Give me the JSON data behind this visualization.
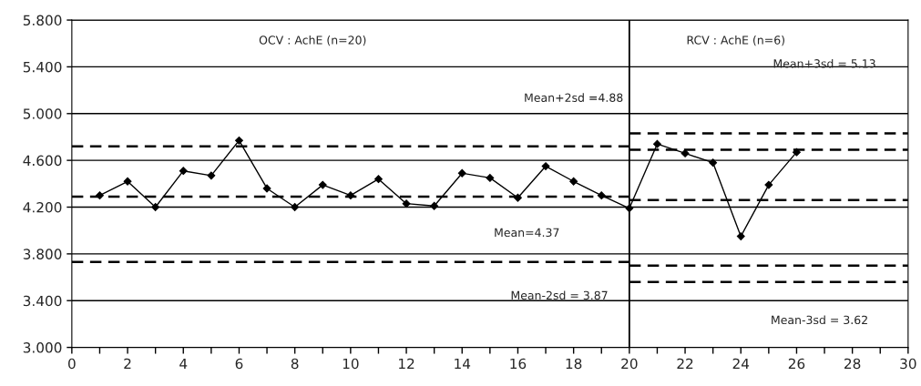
{
  "chart_data": {
    "type": "line",
    "x": [
      1,
      2,
      3,
      4,
      5,
      6,
      7,
      8,
      9,
      10,
      11,
      12,
      13,
      14,
      15,
      16,
      17,
      18,
      19,
      20,
      21,
      22,
      23,
      24,
      25,
      26
    ],
    "series": [
      {
        "color": "#000000",
        "marker": "diamond",
        "line_style": "solid",
        "values": [
          4.3,
          4.42,
          4.2,
          4.51,
          4.47,
          4.77,
          4.36,
          4.2,
          4.39,
          4.3,
          4.44,
          4.23,
          4.21,
          4.49,
          4.45,
          4.28,
          4.55,
          4.42,
          4.3,
          4.19,
          4.74,
          4.66,
          4.58,
          3.95,
          4.39,
          4.67
        ]
      },
      {
        "color": "#000000",
        "marker": "none",
        "line_style": "dashed",
        "x": [
          0,
          20
        ],
        "values": [
          4.72,
          4.72
        ]
      },
      {
        "color": "#000000",
        "marker": "none",
        "line_style": "dashed",
        "x": [
          0,
          20
        ],
        "values": [
          4.29,
          4.29
        ]
      },
      {
        "color": "#000000",
        "marker": "none",
        "line_style": "dashed",
        "x": [
          0,
          20
        ],
        "values": [
          3.73,
          3.73
        ]
      },
      {
        "color": "#000000",
        "marker": "none",
        "line_style": "dashed",
        "x": [
          20,
          30
        ],
        "values": [
          4.83,
          4.83
        ]
      },
      {
        "color": "#000000",
        "marker": "none",
        "line_style": "dashed",
        "x": [
          20,
          30
        ],
        "values": [
          4.69,
          4.69
        ]
      },
      {
        "color": "#000000",
        "marker": "none",
        "line_style": "dashed",
        "x": [
          20,
          30
        ],
        "values": [
          4.26,
          4.26
        ]
      },
      {
        "color": "#000000",
        "marker": "none",
        "line_style": "dashed",
        "x": [
          20,
          30
        ],
        "values": [
          3.7,
          3.7
        ]
      },
      {
        "color": "#000000",
        "marker": "none",
        "line_style": "dashed",
        "x": [
          20,
          30
        ],
        "values": [
          3.56,
          3.56
        ]
      }
    ],
    "ref_lines": [
      {
        "axis": "x",
        "value": 20,
        "color": "#000000",
        "line_style": "solid"
      }
    ],
    "annotations": [
      "OCV : AchE (n=20)",
      "RCV : AchE (n=6)",
      "Mean+3sd = 5.13",
      "Mean+2sd =4.88",
      "Mean=4.37",
      "Mean-2sd = 3.87",
      "Mean-3sd = 3.62"
    ],
    "xlim": [
      0,
      30
    ],
    "xticks": [
      0,
      {
        "value": 1,
        "label": null
      },
      2,
      {
        "value": 3,
        "label": null
      },
      4,
      {
        "value": 5,
        "label": null
      },
      6,
      {
        "value": 7,
        "label": null
      },
      8,
      {
        "value": 9,
        "label": null
      },
      10,
      {
        "value": 11,
        "label": null
      },
      12,
      {
        "value": 13,
        "label": null
      },
      14,
      {
        "value": 15,
        "label": null
      },
      16,
      {
        "value": 17,
        "label": null
      },
      18,
      {
        "value": 19,
        "label": null
      },
      20,
      {
        "value": 21,
        "label": null
      },
      22,
      {
        "value": 23,
        "label": null
      },
      24,
      {
        "value": 25,
        "label": null
      },
      26,
      {
        "value": 27,
        "label": null
      },
      28,
      {
        "value": 29,
        "label": null
      },
      30
    ],
    "ylim": [
      3.0,
      5.8
    ],
    "yticks": [
      {
        "value": 3.0,
        "label": "3.000"
      },
      {
        "value": 3.4,
        "label": "3.400"
      },
      {
        "value": 3.8,
        "label": "3.800"
      },
      {
        "value": 4.2,
        "label": "4.200"
      },
      {
        "value": 4.6,
        "label": "4.600"
      },
      {
        "value": 5.0,
        "label": "5.000"
      },
      {
        "value": 5.4,
        "label": "5.400"
      },
      {
        "value": 5.8,
        "label": "5.800"
      }
    ],
    "grid": "y"
  }
}
